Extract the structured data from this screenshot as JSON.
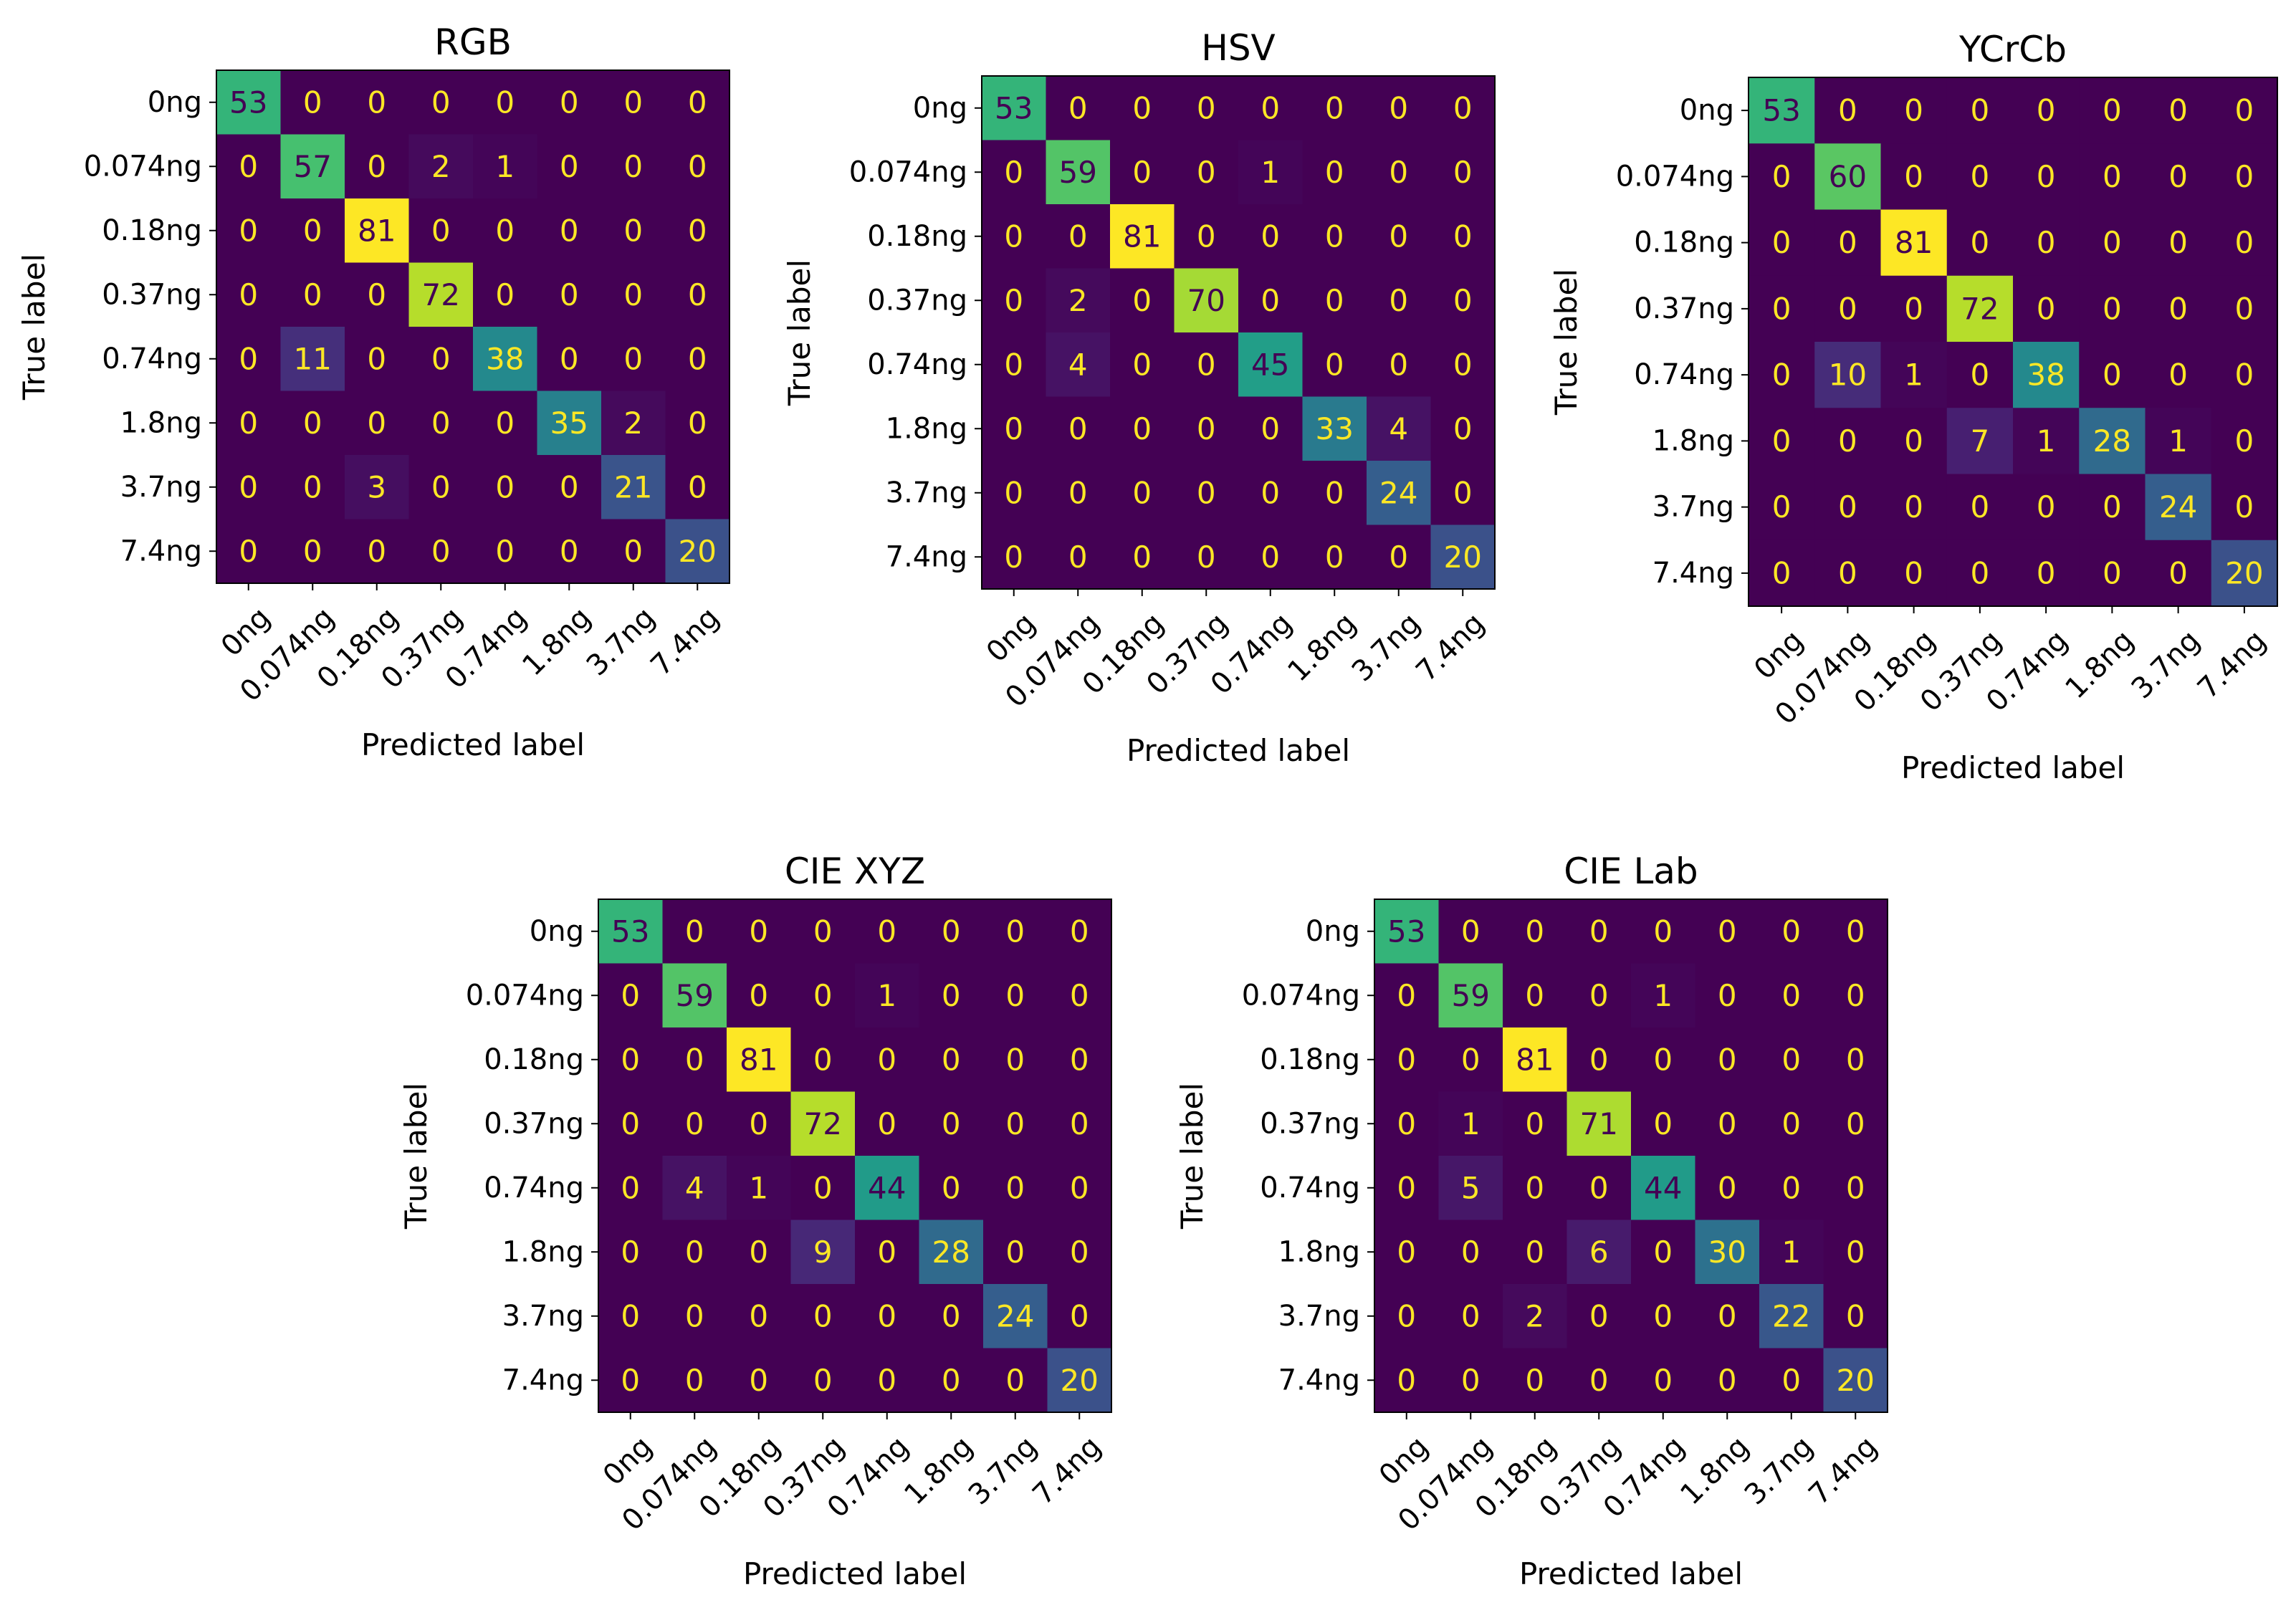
{
  "chart_data": [
    {
      "type": "heatmap",
      "title": "RGB",
      "xlabel": "Predicted label",
      "ylabel": "True label",
      "classes": [
        "0ng",
        "0.074ng",
        "0.18ng",
        "0.37ng",
        "0.74ng",
        "1.8ng",
        "3.7ng",
        "7.4ng"
      ],
      "matrix": [
        [
          53,
          0,
          0,
          0,
          0,
          0,
          0,
          0
        ],
        [
          0,
          57,
          0,
          2,
          1,
          0,
          0,
          0
        ],
        [
          0,
          0,
          81,
          0,
          0,
          0,
          0,
          0
        ],
        [
          0,
          0,
          0,
          72,
          0,
          0,
          0,
          0
        ],
        [
          0,
          11,
          0,
          0,
          38,
          0,
          0,
          0
        ],
        [
          0,
          0,
          0,
          0,
          0,
          35,
          2,
          0
        ],
        [
          0,
          0,
          3,
          0,
          0,
          0,
          21,
          0
        ],
        [
          0,
          0,
          0,
          0,
          0,
          0,
          0,
          20
        ]
      ],
      "colormap": "viridis"
    },
    {
      "type": "heatmap",
      "title": "HSV",
      "xlabel": "Predicted label",
      "ylabel": "True label",
      "classes": [
        "0ng",
        "0.074ng",
        "0.18ng",
        "0.37ng",
        "0.74ng",
        "1.8ng",
        "3.7ng",
        "7.4ng"
      ],
      "matrix": [
        [
          53,
          0,
          0,
          0,
          0,
          0,
          0,
          0
        ],
        [
          0,
          59,
          0,
          0,
          1,
          0,
          0,
          0
        ],
        [
          0,
          0,
          81,
          0,
          0,
          0,
          0,
          0
        ],
        [
          0,
          2,
          0,
          70,
          0,
          0,
          0,
          0
        ],
        [
          0,
          4,
          0,
          0,
          45,
          0,
          0,
          0
        ],
        [
          0,
          0,
          0,
          0,
          0,
          33,
          4,
          0
        ],
        [
          0,
          0,
          0,
          0,
          0,
          0,
          24,
          0
        ],
        [
          0,
          0,
          0,
          0,
          0,
          0,
          0,
          20
        ]
      ],
      "colormap": "viridis"
    },
    {
      "type": "heatmap",
      "title": "YCrCb",
      "xlabel": "Predicted label",
      "ylabel": "True label",
      "classes": [
        "0ng",
        "0.074ng",
        "0.18ng",
        "0.37ng",
        "0.74ng",
        "1.8ng",
        "3.7ng",
        "7.4ng"
      ],
      "matrix": [
        [
          53,
          0,
          0,
          0,
          0,
          0,
          0,
          0
        ],
        [
          0,
          60,
          0,
          0,
          0,
          0,
          0,
          0
        ],
        [
          0,
          0,
          81,
          0,
          0,
          0,
          0,
          0
        ],
        [
          0,
          0,
          0,
          72,
          0,
          0,
          0,
          0
        ],
        [
          0,
          10,
          1,
          0,
          38,
          0,
          0,
          0
        ],
        [
          0,
          0,
          0,
          7,
          1,
          28,
          1,
          0
        ],
        [
          0,
          0,
          0,
          0,
          0,
          0,
          24,
          0
        ],
        [
          0,
          0,
          0,
          0,
          0,
          0,
          0,
          20
        ]
      ],
      "colormap": "viridis"
    },
    {
      "type": "heatmap",
      "title": "CIE XYZ",
      "xlabel": "Predicted label",
      "ylabel": "True label",
      "classes": [
        "0ng",
        "0.074ng",
        "0.18ng",
        "0.37ng",
        "0.74ng",
        "1.8ng",
        "3.7ng",
        "7.4ng"
      ],
      "matrix": [
        [
          53,
          0,
          0,
          0,
          0,
          0,
          0,
          0
        ],
        [
          0,
          59,
          0,
          0,
          1,
          0,
          0,
          0
        ],
        [
          0,
          0,
          81,
          0,
          0,
          0,
          0,
          0
        ],
        [
          0,
          0,
          0,
          72,
          0,
          0,
          0,
          0
        ],
        [
          0,
          4,
          1,
          0,
          44,
          0,
          0,
          0
        ],
        [
          0,
          0,
          0,
          9,
          0,
          28,
          0,
          0
        ],
        [
          0,
          0,
          0,
          0,
          0,
          0,
          24,
          0
        ],
        [
          0,
          0,
          0,
          0,
          0,
          0,
          0,
          20
        ]
      ],
      "colormap": "viridis"
    },
    {
      "type": "heatmap",
      "title": "CIE Lab",
      "xlabel": "Predicted label",
      "ylabel": "True label",
      "classes": [
        "0ng",
        "0.074ng",
        "0.18ng",
        "0.37ng",
        "0.74ng",
        "1.8ng",
        "3.7ng",
        "7.4ng"
      ],
      "matrix": [
        [
          53,
          0,
          0,
          0,
          0,
          0,
          0,
          0
        ],
        [
          0,
          59,
          0,
          0,
          1,
          0,
          0,
          0
        ],
        [
          0,
          0,
          81,
          0,
          0,
          0,
          0,
          0
        ],
        [
          0,
          1,
          0,
          71,
          0,
          0,
          0,
          0
        ],
        [
          0,
          5,
          0,
          0,
          44,
          0,
          0,
          0
        ],
        [
          0,
          0,
          0,
          6,
          0,
          30,
          1,
          0
        ],
        [
          0,
          0,
          2,
          0,
          0,
          0,
          22,
          0
        ],
        [
          0,
          0,
          0,
          0,
          0,
          0,
          0,
          20
        ]
      ],
      "colormap": "viridis"
    }
  ],
  "colors": {
    "text_light": "#fde725",
    "text_dark": "#440154",
    "background": "#ffffff"
  }
}
